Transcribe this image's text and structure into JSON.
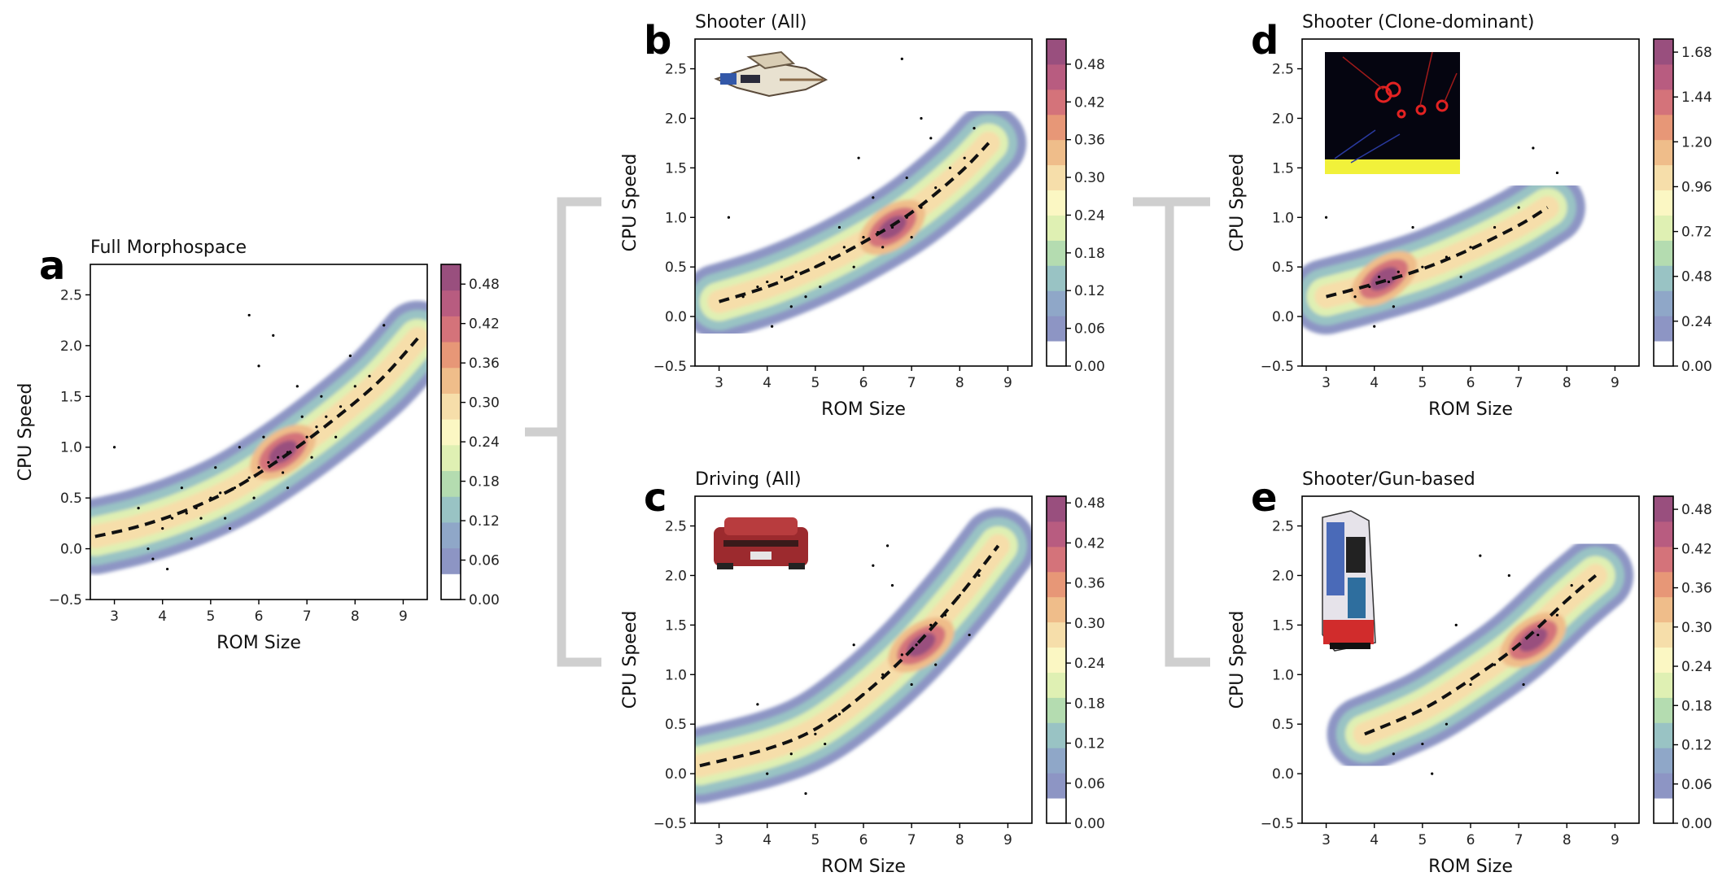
{
  "chart_data": [
    {
      "id": "a",
      "type": "scatter",
      "panel_letter": "a",
      "title": "Full Morphospace",
      "xlabel": "ROM Size",
      "ylabel": "CPU Speed",
      "xlim": [
        2.5,
        9.5
      ],
      "ylim": [
        -0.5,
        2.8
      ],
      "xticks": [
        3,
        4,
        5,
        6,
        7,
        8,
        9
      ],
      "yticks": [
        -0.5,
        0.0,
        0.5,
        1.0,
        1.5,
        2.0,
        2.5
      ],
      "grid": false,
      "colorbar": {
        "ticks": [
          "0.00",
          "0.06",
          "0.12",
          "0.18",
          "0.24",
          "0.30",
          "0.36",
          "0.42",
          "0.48"
        ],
        "max": 0.51
      },
      "trend": {
        "style": "dashed",
        "x": [
          2.6,
          3.5,
          4.5,
          5.5,
          6.5,
          7.5,
          8.5,
          9.3
        ],
        "y": [
          0.12,
          0.22,
          0.38,
          0.6,
          0.9,
          1.25,
          1.65,
          2.07
        ]
      },
      "density_hotspots": [
        {
          "x": 6.5,
          "y": 0.95
        }
      ],
      "points": [
        [
          3.8,
          -0.1
        ],
        [
          4.0,
          0.2
        ],
        [
          4.2,
          0.3
        ],
        [
          4.5,
          0.35
        ],
        [
          4.7,
          0.4
        ],
        [
          5.0,
          0.5
        ],
        [
          5.2,
          0.55
        ],
        [
          5.5,
          0.6
        ],
        [
          5.8,
          0.7
        ],
        [
          6.0,
          0.8
        ],
        [
          6.2,
          0.85
        ],
        [
          6.4,
          0.9
        ],
        [
          6.6,
          0.95
        ],
        [
          6.8,
          1.0
        ],
        [
          7.0,
          1.1
        ],
        [
          7.2,
          1.2
        ],
        [
          7.4,
          1.3
        ],
        [
          7.7,
          1.4
        ],
        [
          8.0,
          1.6
        ],
        [
          8.3,
          1.7
        ],
        [
          4.1,
          -0.2
        ],
        [
          4.6,
          0.1
        ],
        [
          5.3,
          0.3
        ],
        [
          5.9,
          0.5
        ],
        [
          6.5,
          0.75
        ],
        [
          7.1,
          0.9
        ],
        [
          7.6,
          1.1
        ],
        [
          5.1,
          0.8
        ],
        [
          5.6,
          1.0
        ],
        [
          6.1,
          1.1
        ],
        [
          6.9,
          1.3
        ],
        [
          7.3,
          1.5
        ],
        [
          6.0,
          1.8
        ],
        [
          6.3,
          2.1
        ],
        [
          5.8,
          2.3
        ],
        [
          6.8,
          1.6
        ],
        [
          3.0,
          1.0
        ],
        [
          3.5,
          0.4
        ],
        [
          4.4,
          0.6
        ],
        [
          8.6,
          2.2
        ],
        [
          7.9,
          1.9
        ],
        [
          6.6,
          0.6
        ],
        [
          5.4,
          0.2
        ],
        [
          4.8,
          0.3
        ],
        [
          3.7,
          0.0
        ]
      ]
    },
    {
      "id": "b",
      "type": "scatter",
      "panel_letter": "b",
      "title": "Shooter (All)",
      "xlabel": "ROM Size",
      "ylabel": "CPU Speed",
      "xlim": [
        2.5,
        9.5
      ],
      "ylim": [
        -0.5,
        2.8
      ],
      "xticks": [
        3,
        4,
        5,
        6,
        7,
        8,
        9
      ],
      "yticks": [
        -0.5,
        0.0,
        0.5,
        1.0,
        1.5,
        2.0,
        2.5
      ],
      "grid": false,
      "colorbar": {
        "ticks": [
          "0.00",
          "0.06",
          "0.12",
          "0.18",
          "0.24",
          "0.30",
          "0.36",
          "0.42",
          "0.48"
        ],
        "max": 0.52
      },
      "trend": {
        "style": "dashed",
        "x": [
          3.0,
          4.0,
          5.0,
          6.0,
          7.0,
          8.0,
          8.6
        ],
        "y": [
          0.15,
          0.3,
          0.5,
          0.75,
          1.05,
          1.45,
          1.75
        ]
      },
      "density_hotspots": [
        {
          "x": 6.6,
          "y": 0.9
        }
      ],
      "points": [
        [
          3.5,
          0.2
        ],
        [
          3.8,
          0.3
        ],
        [
          4.0,
          0.35
        ],
        [
          4.3,
          0.4
        ],
        [
          4.6,
          0.45
        ],
        [
          5.0,
          0.5
        ],
        [
          5.3,
          0.6
        ],
        [
          5.6,
          0.7
        ],
        [
          6.0,
          0.8
        ],
        [
          6.3,
          0.85
        ],
        [
          6.6,
          0.9
        ],
        [
          6.9,
          1.0
        ],
        [
          7.2,
          1.1
        ],
        [
          7.5,
          1.3
        ],
        [
          7.8,
          1.5
        ],
        [
          8.1,
          1.6
        ],
        [
          4.1,
          -0.1
        ],
        [
          4.5,
          0.1
        ],
        [
          5.1,
          0.3
        ],
        [
          5.8,
          0.5
        ],
        [
          6.4,
          0.7
        ],
        [
          7.0,
          0.8
        ],
        [
          5.5,
          0.9
        ],
        [
          6.2,
          1.2
        ],
        [
          6.9,
          1.4
        ],
        [
          7.4,
          1.8
        ],
        [
          7.2,
          2.0
        ],
        [
          6.8,
          2.6
        ],
        [
          5.9,
          1.6
        ],
        [
          3.2,
          1.0
        ],
        [
          4.8,
          0.2
        ],
        [
          8.3,
          1.9
        ]
      ]
    },
    {
      "id": "c",
      "type": "scatter",
      "panel_letter": "c",
      "title": "Driving (All)",
      "xlabel": "ROM Size",
      "ylabel": "CPU Speed",
      "xlim": [
        2.5,
        9.5
      ],
      "ylim": [
        -0.5,
        2.8
      ],
      "xticks": [
        3,
        4,
        5,
        6,
        7,
        8,
        9
      ],
      "yticks": [
        -0.5,
        0.0,
        0.5,
        1.0,
        1.5,
        2.0,
        2.5
      ],
      "grid": false,
      "colorbar": {
        "ticks": [
          "0.00",
          "0.06",
          "0.12",
          "0.18",
          "0.24",
          "0.30",
          "0.36",
          "0.42",
          "0.48"
        ],
        "max": 0.49
      },
      "trend": {
        "style": "dashed",
        "x": [
          2.6,
          4.0,
          5.0,
          6.0,
          7.0,
          8.0,
          8.8
        ],
        "y": [
          0.08,
          0.25,
          0.45,
          0.8,
          1.25,
          1.8,
          2.3
        ]
      },
      "density_hotspots": [
        {
          "x": 7.2,
          "y": 1.3
        }
      ],
      "points": [
        [
          4.0,
          0.0
        ],
        [
          4.5,
          0.2
        ],
        [
          5.0,
          0.4
        ],
        [
          5.5,
          0.6
        ],
        [
          6.0,
          0.8
        ],
        [
          6.4,
          1.0
        ],
        [
          6.8,
          1.2
        ],
        [
          7.1,
          1.3
        ],
        [
          7.4,
          1.5
        ],
        [
          7.7,
          1.6
        ],
        [
          8.0,
          1.8
        ],
        [
          8.4,
          2.0
        ],
        [
          6.6,
          1.9
        ],
        [
          6.2,
          2.1
        ],
        [
          5.8,
          1.3
        ],
        [
          7.0,
          0.9
        ],
        [
          5.2,
          0.3
        ],
        [
          4.8,
          -0.2
        ],
        [
          3.8,
          0.7
        ],
        [
          7.5,
          1.1
        ],
        [
          8.2,
          1.4
        ],
        [
          6.5,
          2.3
        ]
      ]
    },
    {
      "id": "d",
      "type": "scatter",
      "panel_letter": "d",
      "title": "Shooter (Clone-dominant)",
      "xlabel": "ROM Size",
      "ylabel": "CPU Speed",
      "xlim": [
        2.5,
        9.5
      ],
      "ylim": [
        -0.5,
        2.8
      ],
      "xticks": [
        3,
        4,
        5,
        6,
        7,
        8,
        9
      ],
      "yticks": [
        -0.5,
        0.0,
        0.5,
        1.0,
        1.5,
        2.0,
        2.5
      ],
      "grid": false,
      "colorbar": {
        "ticks": [
          "0.00",
          "0.24",
          "0.48",
          "0.72",
          "0.96",
          "1.20",
          "1.44",
          "1.68"
        ],
        "max": 1.75
      },
      "trend": {
        "style": "dashed",
        "x": [
          3.0,
          4.0,
          5.0,
          6.0,
          7.0,
          7.6
        ],
        "y": [
          0.2,
          0.33,
          0.48,
          0.68,
          0.92,
          1.1
        ]
      },
      "density_hotspots": [
        {
          "x": 4.2,
          "y": 0.38
        }
      ],
      "points": [
        [
          3.6,
          0.2
        ],
        [
          3.9,
          0.3
        ],
        [
          4.1,
          0.4
        ],
        [
          4.3,
          0.35
        ],
        [
          4.5,
          0.45
        ],
        [
          4.0,
          -0.1
        ],
        [
          4.4,
          0.1
        ],
        [
          5.0,
          0.5
        ],
        [
          5.5,
          0.6
        ],
        [
          6.0,
          0.7
        ],
        [
          6.5,
          0.9
        ],
        [
          7.0,
          1.1
        ],
        [
          5.8,
          0.4
        ],
        [
          3.0,
          1.0
        ],
        [
          7.3,
          1.7
        ],
        [
          7.8,
          1.45
        ],
        [
          4.8,
          0.9
        ]
      ]
    },
    {
      "id": "e",
      "type": "scatter",
      "panel_letter": "e",
      "title": "Shooter/Gun-based",
      "xlabel": "ROM Size",
      "ylabel": "CPU Speed",
      "xlim": [
        2.5,
        9.5
      ],
      "ylim": [
        -0.5,
        2.8
      ],
      "xticks": [
        3,
        4,
        5,
        6,
        7,
        8,
        9
      ],
      "yticks": [
        -0.5,
        0.0,
        0.5,
        1.0,
        1.5,
        2.0,
        2.5
      ],
      "grid": false,
      "colorbar": {
        "ticks": [
          "0.00",
          "0.06",
          "0.12",
          "0.18",
          "0.24",
          "0.30",
          "0.36",
          "0.42",
          "0.48"
        ],
        "max": 0.5
      },
      "trend": {
        "style": "dashed",
        "x": [
          3.8,
          5.0,
          6.0,
          7.0,
          8.0,
          8.6
        ],
        "y": [
          0.4,
          0.65,
          0.95,
          1.3,
          1.75,
          2.0
        ]
      },
      "density_hotspots": [
        {
          "x": 7.3,
          "y": 1.35
        }
      ],
      "points": [
        [
          5.0,
          0.3
        ],
        [
          5.5,
          0.5
        ],
        [
          6.0,
          0.9
        ],
        [
          6.5,
          1.1
        ],
        [
          7.0,
          1.3
        ],
        [
          7.4,
          1.4
        ],
        [
          7.8,
          1.6
        ],
        [
          6.8,
          2.0
        ],
        [
          6.2,
          2.2
        ],
        [
          5.7,
          1.5
        ],
        [
          8.1,
          1.9
        ],
        [
          4.4,
          0.2
        ],
        [
          5.2,
          0.0
        ],
        [
          7.1,
          0.9
        ]
      ]
    }
  ]
}
